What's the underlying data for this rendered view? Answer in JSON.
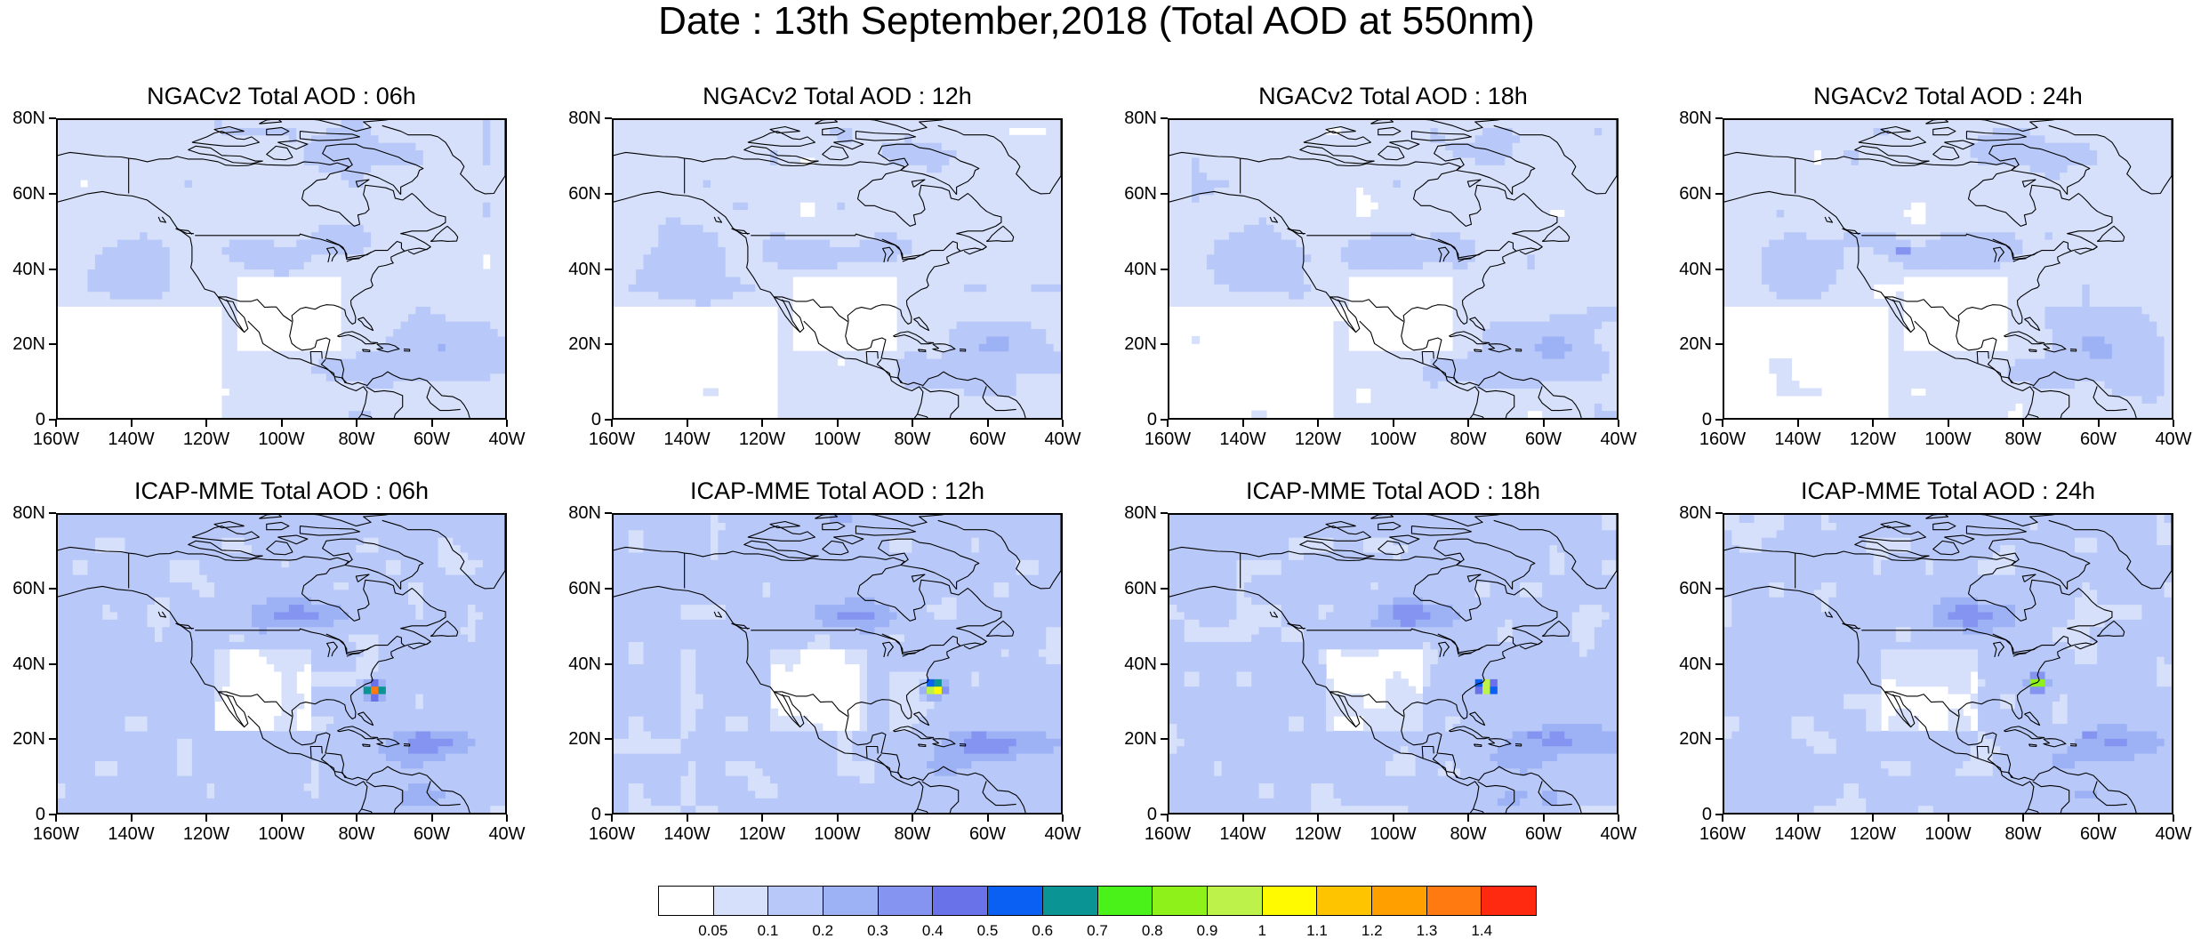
{
  "title": "Date : 13th September,2018 (Total AOD at 550nm)",
  "panels": [
    {
      "title": "NGACv2 Total AOD : 06h",
      "model": "ngac",
      "hour": 6
    },
    {
      "title": "NGACv2 Total AOD : 12h",
      "model": "ngac",
      "hour": 12
    },
    {
      "title": "NGACv2 Total AOD : 18h",
      "model": "ngac",
      "hour": 18
    },
    {
      "title": "NGACv2 Total AOD : 24h",
      "model": "ngac",
      "hour": 24
    },
    {
      "title": "ICAP-MME Total AOD : 06h",
      "model": "icap",
      "hour": 6
    },
    {
      "title": "ICAP-MME Total AOD : 12h",
      "model": "icap",
      "hour": 12
    },
    {
      "title": "ICAP-MME Total AOD : 18h",
      "model": "icap",
      "hour": 18
    },
    {
      "title": "ICAP-MME Total AOD : 24h",
      "model": "icap",
      "hour": 24
    }
  ],
  "lat_labels": [
    "80N",
    "60N",
    "40N",
    "20N",
    "0"
  ],
  "lon_labels": [
    "160W",
    "140W",
    "120W",
    "100W",
    "80W",
    "60W",
    "40W"
  ],
  "colorbar": {
    "colors": [
      "#ffffff",
      "#d6e0fb",
      "#b8c8f8",
      "#9cb2f5",
      "#8494f0",
      "#6a72ea",
      "#0a60f2",
      "#0a9494",
      "#4bf21a",
      "#8ef21a",
      "#bdf24a",
      "#fffa00",
      "#ffc400",
      "#ffa000",
      "#ff7a10",
      "#ff2a10"
    ],
    "labels": [
      "0.05",
      "0.1",
      "0.2",
      "0.3",
      "0.4",
      "0.5",
      "0.6",
      "0.7",
      "0.8",
      "0.9",
      "1",
      "1.1",
      "1.2",
      "1.3",
      "1.4"
    ]
  }
}
